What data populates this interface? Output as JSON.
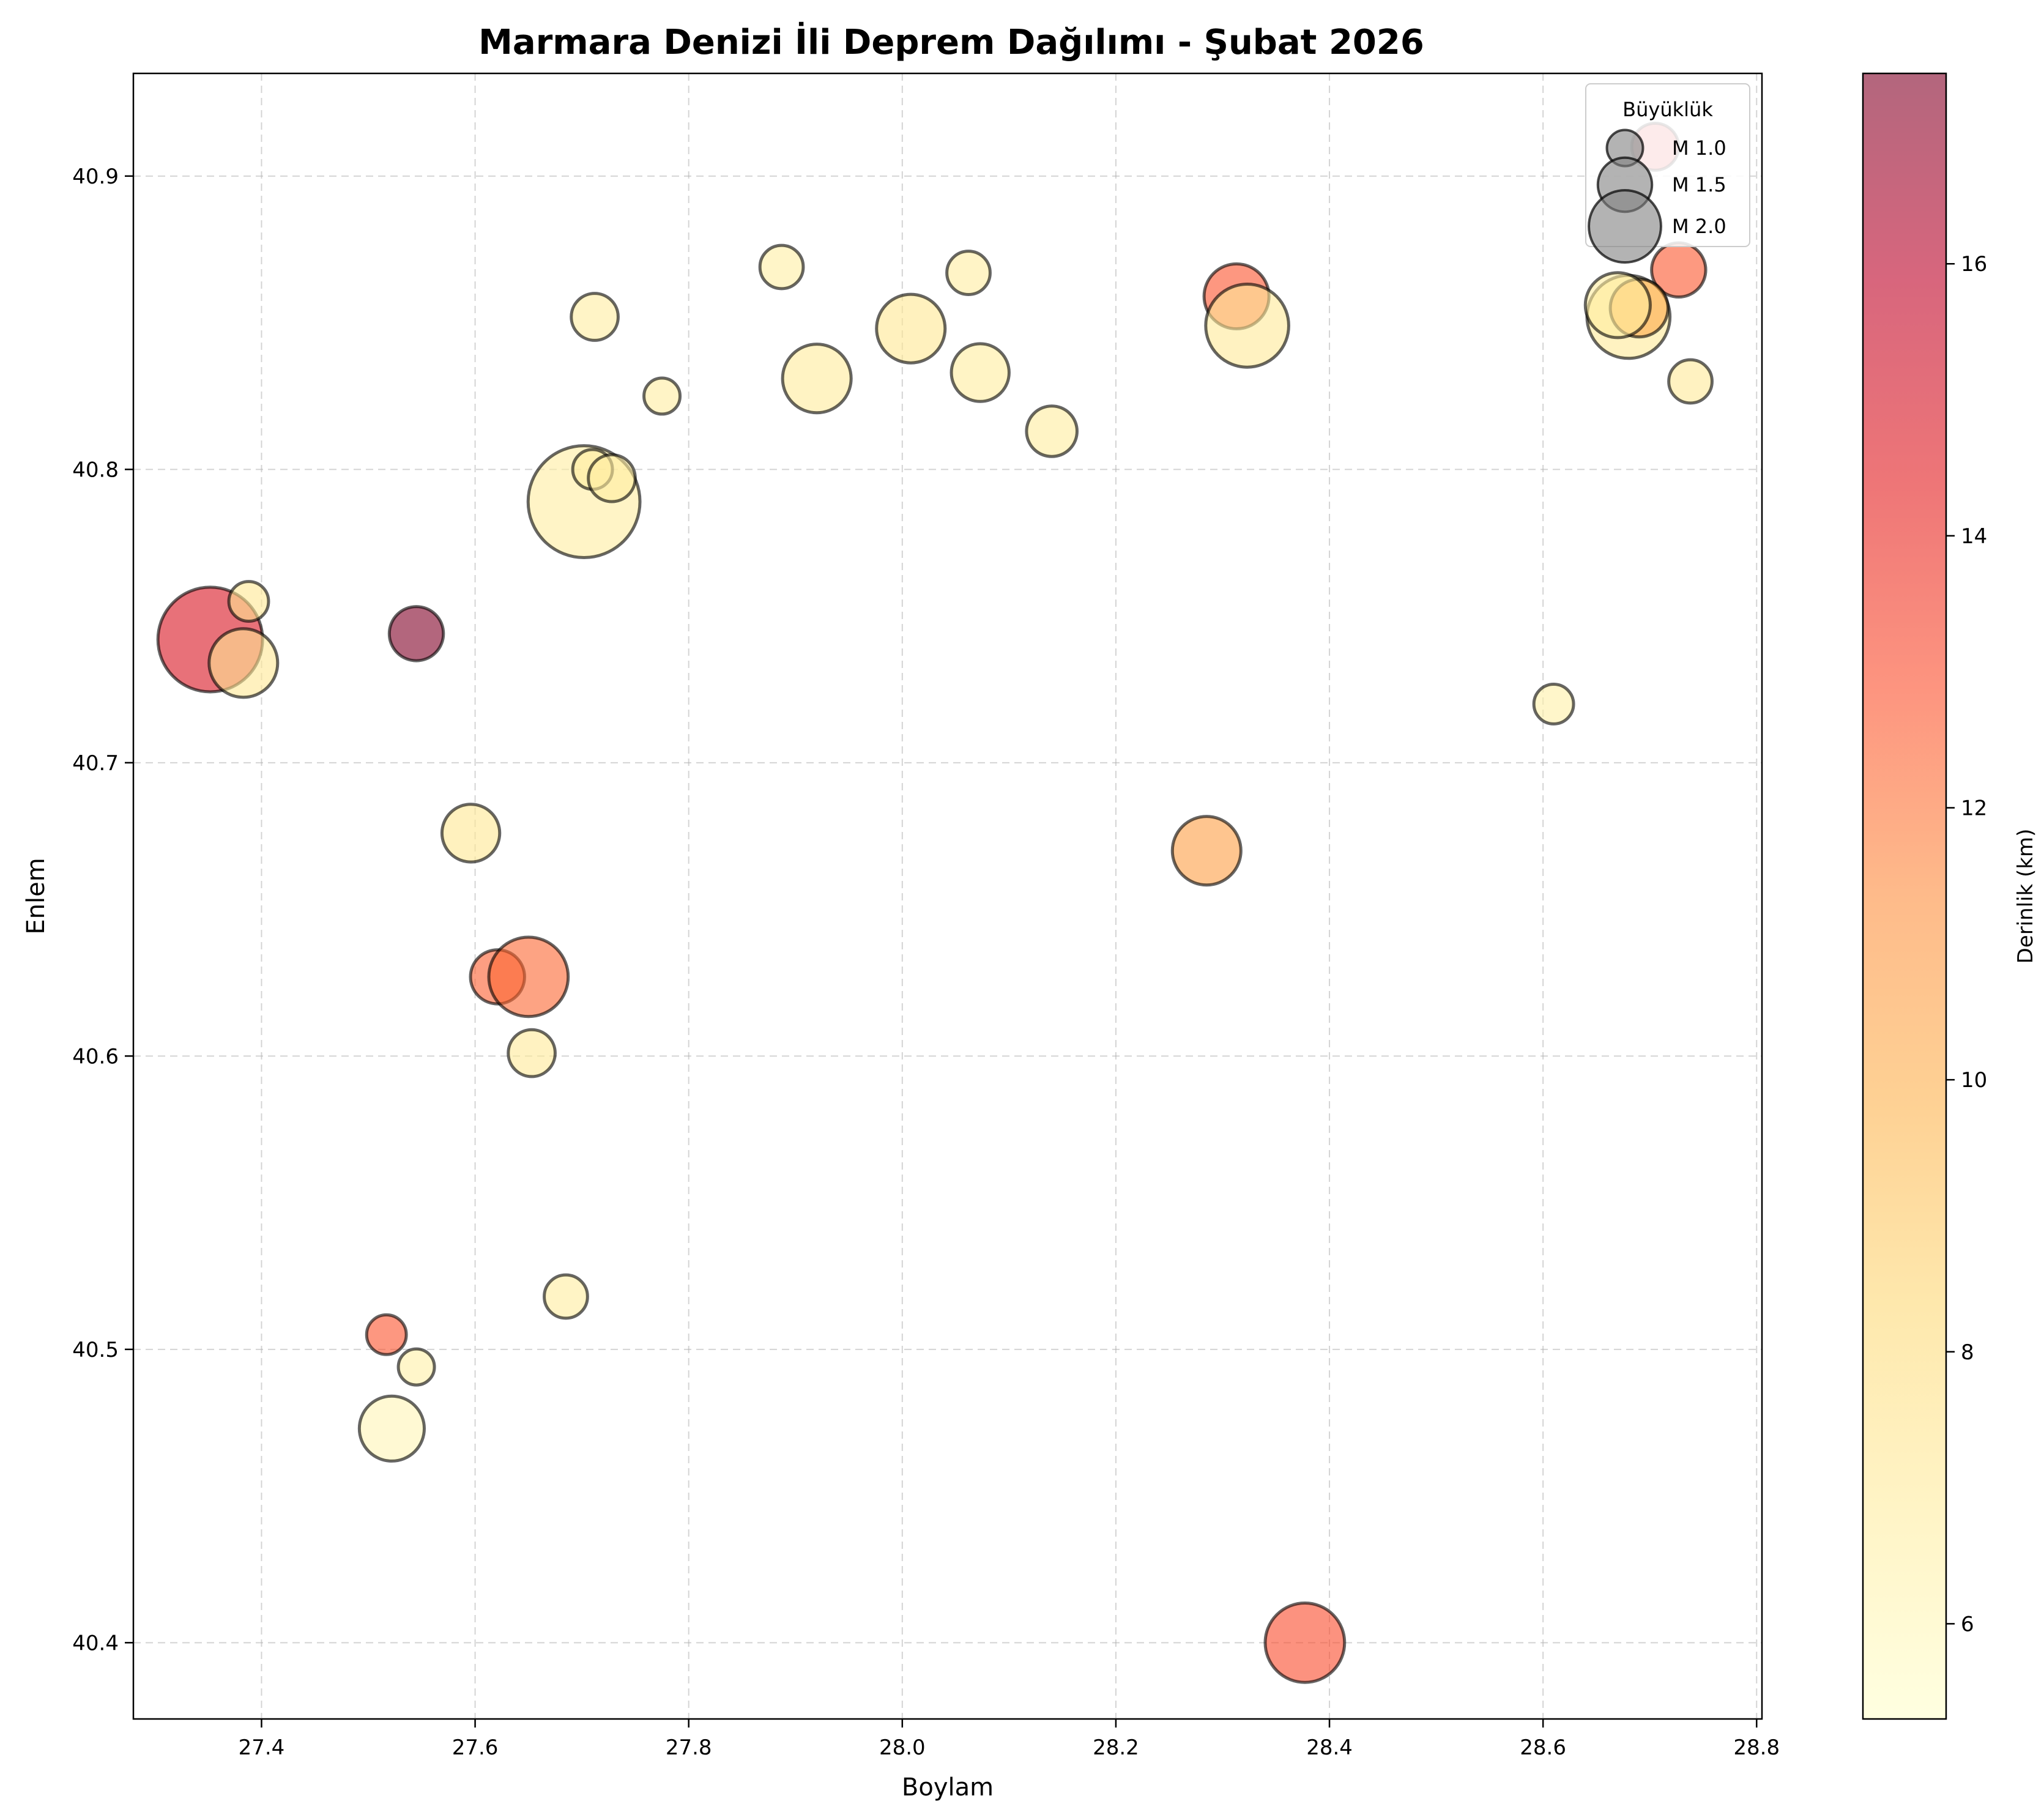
{
  "chart_data": {
    "type": "scatter",
    "title": "Marmara Denizi İli Deprem Dağılımı - Şubat 2026",
    "xlabel": "Boylam",
    "ylabel": "Enlem",
    "xlim": [
      27.28,
      28.805
    ],
    "ylim": [
      40.374,
      40.935
    ],
    "xticks": [
      "27.4",
      "27.6",
      "27.8",
      "28.0",
      "28.2",
      "28.4",
      "28.6",
      "28.8"
    ],
    "yticks": [
      "40.4",
      "40.5",
      "40.6",
      "40.7",
      "40.8",
      "40.9"
    ],
    "grid": true,
    "colorbar": {
      "label": "Derinlik (km)",
      "min": 5.3,
      "max": 17.4,
      "ticks": [
        "6",
        "8",
        "10",
        "12",
        "14",
        "16"
      ],
      "colormap": [
        "#ffffcc",
        "#ffeda0",
        "#fed976",
        "#feb24c",
        "#fd8d3c",
        "#fc4e2a",
        "#e31a1c",
        "#bd0026",
        "#800026"
      ],
      "alpha": 0.6
    },
    "legend": {
      "title": "Büyüklük",
      "placement": "top-right",
      "entries": [
        {
          "label": "M 1.0",
          "magnitude": 1.0
        },
        {
          "label": "M 1.5",
          "magnitude": 1.5
        },
        {
          "label": "M 2.0",
          "magnitude": 2.0
        }
      ]
    },
    "points": [
      {
        "lon": 27.352,
        "lat": 40.742,
        "magnitude": 2.9,
        "depth": 14.8
      },
      {
        "lon": 27.383,
        "lat": 40.734,
        "magnitude": 1.9,
        "depth": 7.2
      },
      {
        "lon": 27.388,
        "lat": 40.755,
        "magnitude": 1.1,
        "depth": 7.3
      },
      {
        "lon": 27.545,
        "lat": 40.744,
        "magnitude": 1.5,
        "depth": 17.4
      },
      {
        "lon": 27.702,
        "lat": 40.789,
        "magnitude": 3.1,
        "depth": 6.8
      },
      {
        "lon": 27.71,
        "lat": 40.8,
        "magnitude": 1.1,
        "depth": 6.8
      },
      {
        "lon": 27.728,
        "lat": 40.797,
        "magnitude": 1.3,
        "depth": 6.8
      },
      {
        "lon": 27.712,
        "lat": 40.852,
        "magnitude": 1.3,
        "depth": 6.8
      },
      {
        "lon": 27.775,
        "lat": 40.825,
        "magnitude": 1.0,
        "depth": 6.8
      },
      {
        "lon": 27.887,
        "lat": 40.869,
        "magnitude": 1.2,
        "depth": 6.7
      },
      {
        "lon": 27.92,
        "lat": 40.831,
        "magnitude": 1.9,
        "depth": 7.0
      },
      {
        "lon": 28.008,
        "lat": 40.848,
        "magnitude": 1.9,
        "depth": 7.3
      },
      {
        "lon": 28.062,
        "lat": 40.867,
        "magnitude": 1.2,
        "depth": 6.8
      },
      {
        "lon": 28.073,
        "lat": 40.833,
        "magnitude": 1.6,
        "depth": 6.9
      },
      {
        "lon": 28.14,
        "lat": 40.813,
        "magnitude": 1.4,
        "depth": 6.9
      },
      {
        "lon": 28.313,
        "lat": 40.859,
        "magnitude": 1.8,
        "depth": 12.8
      },
      {
        "lon": 28.323,
        "lat": 40.849,
        "magnitude": 2.3,
        "depth": 7.1
      },
      {
        "lon": 27.596,
        "lat": 40.676,
        "magnitude": 1.6,
        "depth": 7.3
      },
      {
        "lon": 27.621,
        "lat": 40.627,
        "magnitude": 1.5,
        "depth": 12.5
      },
      {
        "lon": 27.65,
        "lat": 40.627,
        "magnitude": 2.2,
        "depth": 12.3
      },
      {
        "lon": 27.653,
        "lat": 40.601,
        "magnitude": 1.3,
        "depth": 7.1
      },
      {
        "lon": 27.685,
        "lat": 40.518,
        "magnitude": 1.2,
        "depth": 6.9
      },
      {
        "lon": 27.517,
        "lat": 40.505,
        "magnitude": 1.1,
        "depth": 12.8
      },
      {
        "lon": 27.545,
        "lat": 40.494,
        "magnitude": 1.0,
        "depth": 6.6
      },
      {
        "lon": 27.522,
        "lat": 40.473,
        "magnitude": 1.8,
        "depth": 6.1
      },
      {
        "lon": 28.285,
        "lat": 40.67,
        "magnitude": 1.9,
        "depth": 10.6
      },
      {
        "lon": 28.377,
        "lat": 40.4,
        "magnitude": 2.2,
        "depth": 13.0
      },
      {
        "lon": 28.61,
        "lat": 40.72,
        "magnitude": 1.1,
        "depth": 6.6
      },
      {
        "lon": 28.705,
        "lat": 40.91,
        "magnitude": 1.3,
        "depth": 14.3
      },
      {
        "lon": 28.727,
        "lat": 40.868,
        "magnitude": 1.5,
        "depth": 12.7
      },
      {
        "lon": 28.738,
        "lat": 40.83,
        "magnitude": 1.2,
        "depth": 7.1
      },
      {
        "lon": 28.68,
        "lat": 40.852,
        "magnitude": 2.3,
        "depth": 7.1
      },
      {
        "lon": 28.69,
        "lat": 40.855,
        "magnitude": 1.6,
        "depth": 10.2
      },
      {
        "lon": 28.67,
        "lat": 40.856,
        "magnitude": 1.8,
        "depth": 6.9
      }
    ]
  }
}
